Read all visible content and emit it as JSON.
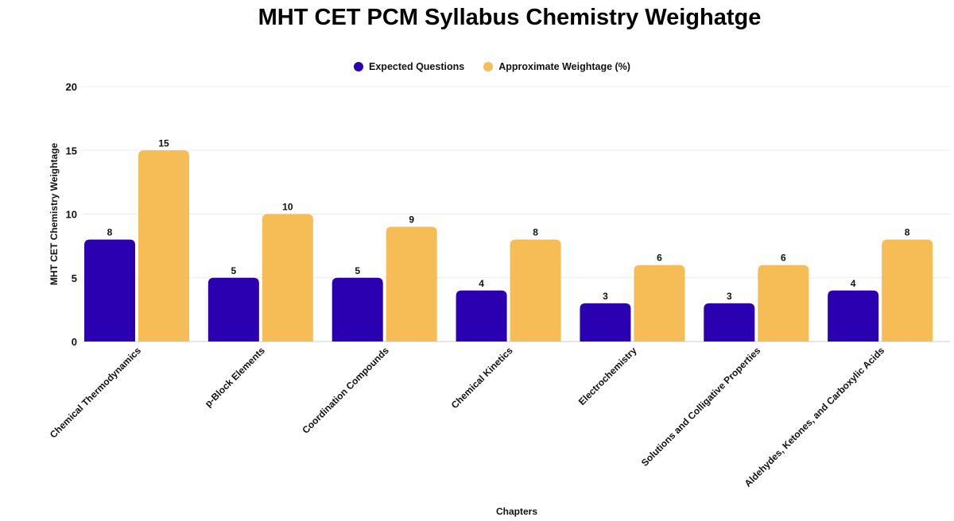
{
  "chart_data": {
    "type": "bar",
    "title": "MHT CET PCM Syllabus Chemistry Weighatge",
    "xlabel": "Chapters",
    "ylabel": "MHT CET Chemistry Weightage",
    "ylim": [
      0,
      20
    ],
    "yticks": [
      0,
      5,
      10,
      15,
      20
    ],
    "grid": true,
    "legend_position": "top-center",
    "categories": [
      "Chemical Thermodynamics",
      "p-Block Elements",
      "Coordination Compounds",
      "Chemical Kinetics",
      "Electrochemistry",
      "Solutions and Colligative Properties",
      "Aldehydes, Ketones, and Carboxylic Acids"
    ],
    "series": [
      {
        "name": "Expected Questions",
        "color": "#2a00b0",
        "values": [
          8,
          5,
          5,
          4,
          3,
          3,
          4
        ]
      },
      {
        "name": "Approximate Weightage (%)",
        "color": "#f6bc56",
        "values": [
          15,
          10,
          9,
          8,
          6,
          6,
          8
        ]
      }
    ]
  }
}
